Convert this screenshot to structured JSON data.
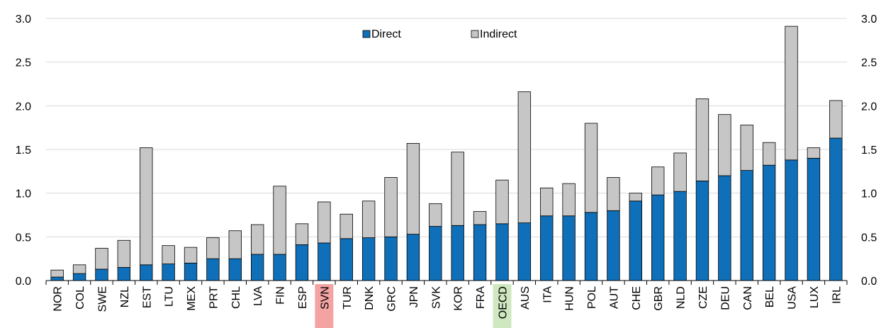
{
  "chart_data": {
    "type": "bar",
    "stacked": true,
    "categories": [
      "NOR",
      "COL",
      "SWE",
      "NZL",
      "EST",
      "LTU",
      "MEX",
      "PRT",
      "CHL",
      "LVA",
      "FIN",
      "ESP",
      "SVN",
      "TUR",
      "DNK",
      "GRC",
      "JPN",
      "SVK",
      "KOR",
      "FRA",
      "OECD",
      "AUS",
      "ITA",
      "HUN",
      "POL",
      "AUT",
      "CHE",
      "GBR",
      "NLD",
      "CZE",
      "DEU",
      "CAN",
      "BEL",
      "USA",
      "LUX",
      "IRL"
    ],
    "series": [
      {
        "name": "Direct",
        "color": "#0F6FB8",
        "values": [
          0.04,
          0.08,
          0.13,
          0.15,
          0.18,
          0.19,
          0.2,
          0.25,
          0.25,
          0.3,
          0.3,
          0.41,
          0.43,
          0.48,
          0.49,
          0.5,
          0.53,
          0.62,
          0.63,
          0.64,
          0.65,
          0.66,
          0.74,
          0.74,
          0.78,
          0.8,
          0.91,
          0.98,
          1.02,
          1.14,
          1.2,
          1.26,
          1.32,
          1.38,
          1.4,
          1.63
        ]
      },
      {
        "name": "Indirect",
        "color": "#C6C6C6",
        "values": [
          0.08,
          0.1,
          0.24,
          0.31,
          1.34,
          0.21,
          0.18,
          0.24,
          0.32,
          0.34,
          0.78,
          0.24,
          0.47,
          0.28,
          0.42,
          0.68,
          1.04,
          0.26,
          0.84,
          0.15,
          0.5,
          1.5,
          0.32,
          0.37,
          1.02,
          0.38,
          0.09,
          0.32,
          0.44,
          0.94,
          0.7,
          0.52,
          0.26,
          1.53,
          0.12,
          0.43
        ]
      }
    ],
    "highlights": [
      {
        "category": "SVN",
        "color": "#F4A3A3"
      },
      {
        "category": "OECD",
        "color": "#CFE8C0"
      }
    ],
    "ylim": [
      0,
      3.0
    ],
    "yticks": [
      "0.0",
      "0.5",
      "1.0",
      "1.5",
      "2.0",
      "2.5",
      "3.0"
    ],
    "grid": true,
    "legend_position": "top-center",
    "title": "",
    "xlabel": "",
    "ylabel": ""
  }
}
